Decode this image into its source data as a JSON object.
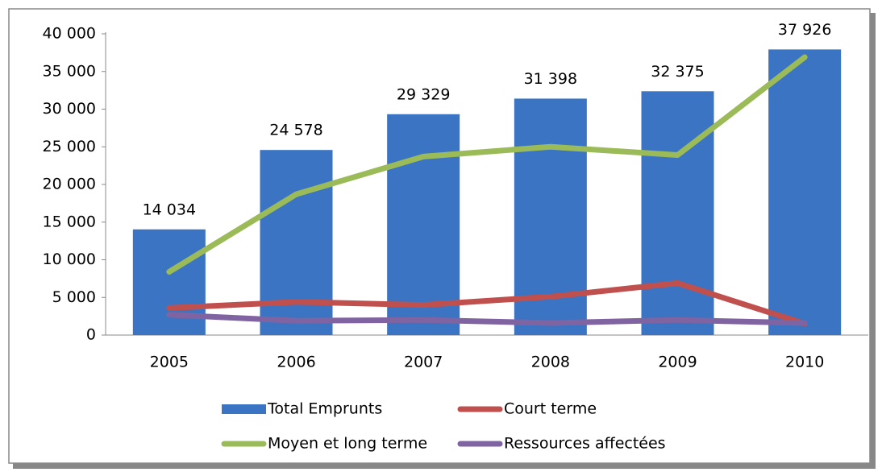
{
  "chart_data": {
    "type": "bar",
    "categories": [
      "2005",
      "2006",
      "2007",
      "2008",
      "2009",
      "2010"
    ],
    "series": [
      {
        "name": "Total Emprunts",
        "type": "bar",
        "color": "#3a74c2",
        "values": [
          14034,
          24578,
          29329,
          31398,
          32375,
          37926
        ],
        "value_labels": [
          "14 034",
          "24 578",
          "29 329",
          "31 398",
          "32 375",
          "37 926"
        ]
      },
      {
        "name": "Court terme",
        "type": "line",
        "color": "#c0504d",
        "values": [
          3600,
          4400,
          4000,
          5100,
          6900,
          1500
        ]
      },
      {
        "name": "Moyen et long terme",
        "type": "line",
        "color": "#9bbb59",
        "values": [
          8400,
          18700,
          23700,
          25000,
          23900,
          36900
        ]
      },
      {
        "name": "Ressources affectées",
        "type": "line",
        "color": "#8064a2",
        "values": [
          2700,
          1900,
          2000,
          1600,
          2000,
          1600
        ]
      }
    ],
    "ylim": [
      0,
      40000
    ],
    "yticks": [
      0,
      {
        "value": 5000,
        "label": "5 000"
      },
      {
        "value": 10000,
        "label": "10 000"
      },
      {
        "value": 15000,
        "label": "15 000"
      },
      {
        "value": 20000,
        "label": "20 000"
      },
      {
        "value": 25000,
        "label": "25 000"
      },
      {
        "value": 30000,
        "label": "30 000"
      },
      {
        "value": 35000,
        "label": "35 000"
      },
      {
        "value": 40000,
        "label": "40 000"
      }
    ]
  }
}
